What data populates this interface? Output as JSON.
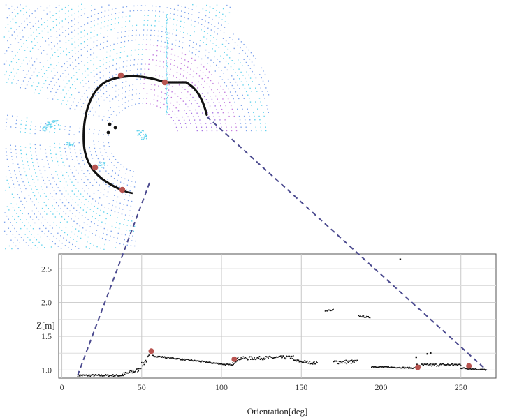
{
  "chart_data": {
    "type": "scatter",
    "title": "",
    "xlabel": "Orientation[deg]",
    "ylabel": "Z[m]",
    "xlim": [
      -2,
      272
    ],
    "ylim": [
      0.88,
      2.72
    ],
    "xticks": [
      0,
      50,
      100,
      150,
      200,
      250
    ],
    "yticks": [
      1.0,
      1.5,
      2.0,
      2.5
    ],
    "xtick_labels": [
      "0",
      "50",
      "100",
      "150",
      "200",
      "250"
    ],
    "ytick_labels": [
      "1.0",
      "1.5",
      "2.0",
      "2.5"
    ],
    "grid": true,
    "series": [
      {
        "role": "points",
        "color": "#111111",
        "segments": [
          {
            "x0": 10,
            "x1": 38,
            "y0": 0.92,
            "y1": 0.92,
            "jitter": 0.015
          },
          {
            "x0": 38,
            "x1": 48,
            "y0": 0.93,
            "y1": 1.0,
            "jitter": 0.03
          },
          {
            "x0": 48,
            "x1": 55,
            "y0": 1.02,
            "y1": 1.2,
            "jitter": 0.04
          },
          {
            "x0": 57,
            "x1": 107,
            "y0": 1.21,
            "y1": 1.07,
            "jitter": 0.01
          },
          {
            "x0": 107,
            "x1": 110,
            "y0": 1.09,
            "y1": 1.16,
            "jitter": 0.02
          },
          {
            "x0": 110,
            "x1": 145,
            "y0": 1.17,
            "y1": 1.19,
            "jitter": 0.025
          },
          {
            "x0": 145,
            "x1": 160,
            "y0": 1.14,
            "y1": 1.1,
            "jitter": 0.02
          },
          {
            "x0": 165,
            "x1": 170,
            "y0": 1.88,
            "y1": 1.89,
            "jitter": 0.01
          },
          {
            "x0": 170,
            "x1": 185,
            "y0": 1.12,
            "y1": 1.12,
            "jitter": 0.03
          },
          {
            "x0": 186,
            "x1": 193,
            "y0": 1.8,
            "y1": 1.78,
            "jitter": 0.01
          },
          {
            "x0": 194,
            "x1": 221,
            "y0": 1.05,
            "y1": 1.03,
            "jitter": 0.008
          },
          {
            "x0": 222,
            "x1": 250,
            "y0": 1.07,
            "y1": 1.08,
            "jitter": 0.02
          },
          {
            "x0": 250,
            "x1": 266,
            "y0": 1.03,
            "y1": 1.0,
            "jitter": 0.01
          }
        ],
        "isolated": [
          {
            "x": 212,
            "y": 2.64
          },
          {
            "x": 229,
            "y": 1.24
          },
          {
            "x": 231,
            "y": 1.25
          },
          {
            "x": 222,
            "y": 1.19
          }
        ]
      },
      {
        "role": "markers",
        "color": "#b85450",
        "points": [
          {
            "x": 56,
            "y": 1.28
          },
          {
            "x": 108,
            "y": 1.16
          },
          {
            "x": 223,
            "y": 1.04
          },
          {
            "x": 255,
            "y": 1.06
          }
        ]
      }
    ]
  },
  "point_cloud": {
    "colors": {
      "scan_light": "#63d3ee",
      "scan_blue": "#7fa4ec",
      "scan_purple": "#a975e4",
      "scan_violet": "#c37ddf",
      "outline": "#111111",
      "markers": "#b85450"
    }
  },
  "zoom_connector": {
    "color": "#4b4a8f"
  }
}
